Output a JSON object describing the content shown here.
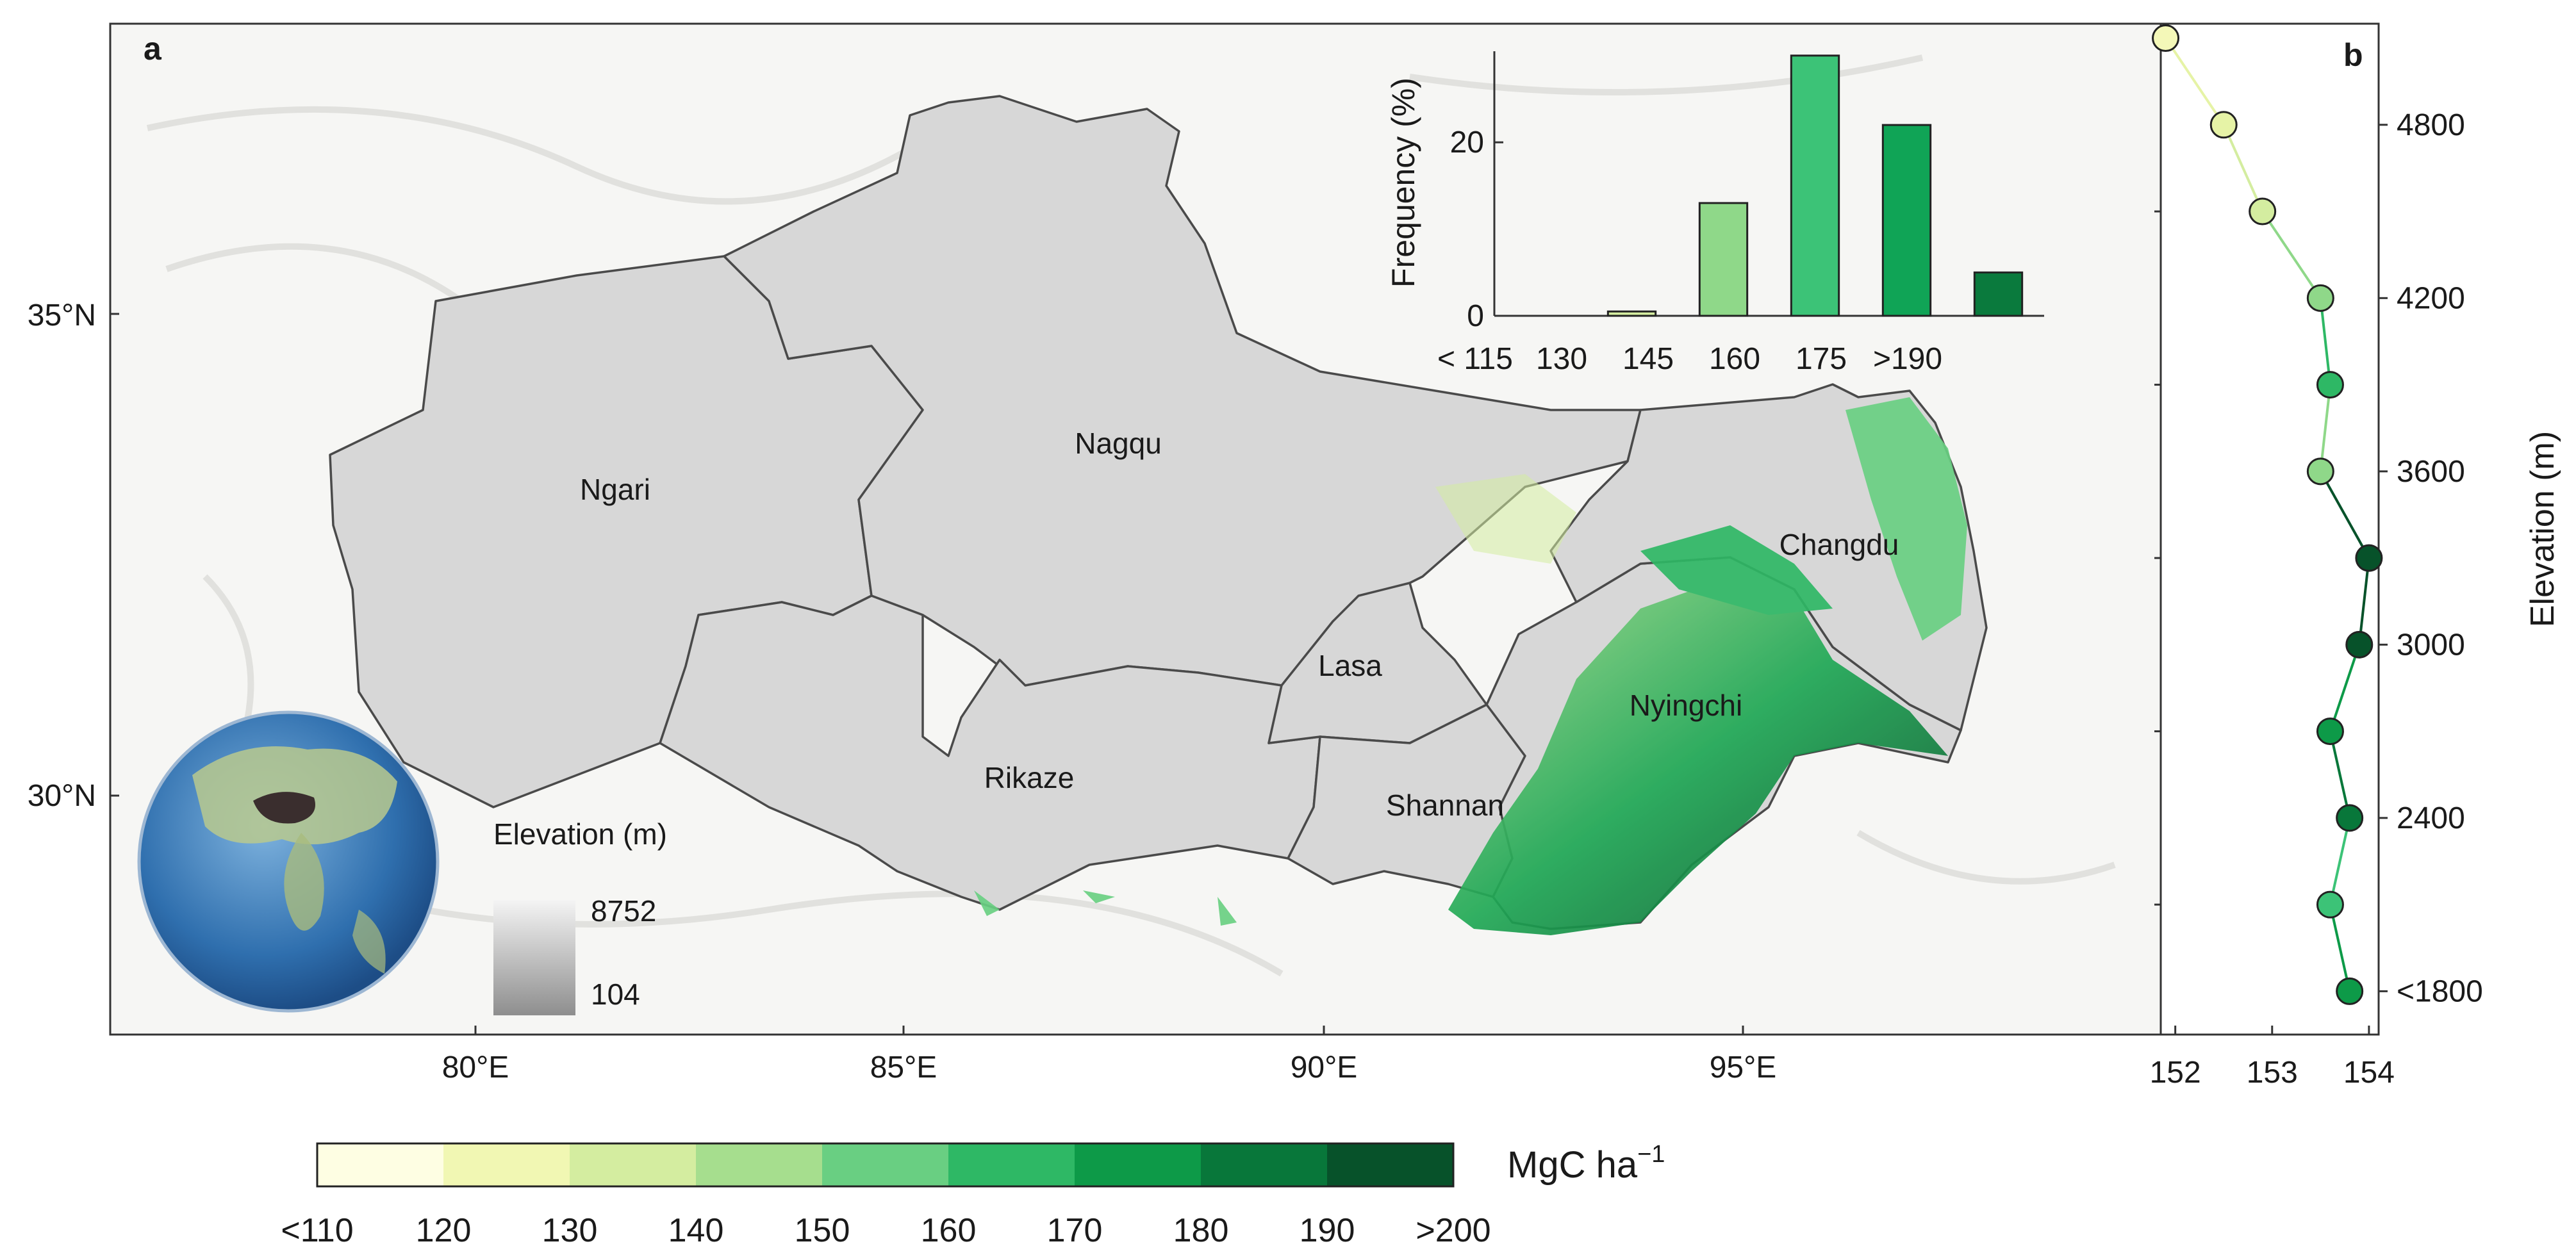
{
  "panels": {
    "a": {
      "label": "a",
      "lat_ticks": [
        "35°N",
        "30°N"
      ],
      "lon_ticks": [
        "80°E",
        "85°E",
        "90°E",
        "95°E"
      ],
      "regions": [
        "Ngari",
        "Nagqu",
        "Changdu",
        "Lasa",
        "Rikaze",
        "Nyingchi",
        "Shannan"
      ],
      "elevation_legend": {
        "title": "Elevation (m)",
        "max": "8752",
        "min": "104"
      }
    },
    "b": {
      "label": "b"
    }
  },
  "colorbar": {
    "unit": "MgC ha",
    "unit_exp": "−1",
    "tick_labels": [
      "<110",
      "120",
      "130",
      "140",
      "150",
      "160",
      "170",
      "180",
      "190",
      ">200"
    ],
    "colors": [
      "#fefee3",
      "#f1f7b3",
      "#d4edA0",
      "#a6de8e",
      "#69cf82",
      "#2eb865",
      "#0d9a48",
      "#08773a",
      "#07522a"
    ]
  },
  "chart_data": [
    {
      "type": "bar",
      "title": "",
      "xlabel": "",
      "ylabel": "Frequency (%)",
      "categories": [
        "< 115",
        "130",
        "145",
        "160",
        "175",
        ">190"
      ],
      "tick_labels": [
        "< 115",
        "130",
        "145",
        "160",
        "175",
        ">190"
      ],
      "values": [
        0,
        0.5,
        13,
        30,
        22,
        5
      ],
      "bar_colors": [
        "#f1f7b3",
        "#d4eda0",
        "#8fd889",
        "#3cc377",
        "#10a456",
        "#0a7a3d"
      ],
      "ylim": [
        0,
        30
      ],
      "yticks": [
        0,
        20
      ]
    },
    {
      "type": "line",
      "title": "",
      "xlabel": "",
      "ylabel": "Elevation (m)",
      "x": [
        151.9,
        152.5,
        152.9,
        153.5,
        153.6,
        153.5,
        154.0,
        153.9,
        153.6,
        153.8,
        153.6,
        153.8
      ],
      "y": [
        5100,
        4800,
        4500,
        4200,
        3900,
        3600,
        3300,
        3000,
        2700,
        2400,
        2100,
        1800
      ],
      "point_colors": [
        "#f4f8b8",
        "#e6f3a6",
        "#d4eda0",
        "#8fd889",
        "#2eb865",
        "#8fd889",
        "#07522a",
        "#07522a",
        "#0d9a48",
        "#08773a",
        "#3cc377",
        "#0d9a48"
      ],
      "xticks": [
        152,
        153,
        154
      ],
      "ytick_labels": [
        "4800",
        "4200",
        "3600",
        "3000",
        "2400",
        "<1800"
      ],
      "yticks": [
        4800,
        4200,
        3600,
        3000,
        2400,
        1800
      ],
      "xlim": [
        151.85,
        154.1
      ],
      "ylim": [
        1650,
        5150
      ]
    }
  ]
}
